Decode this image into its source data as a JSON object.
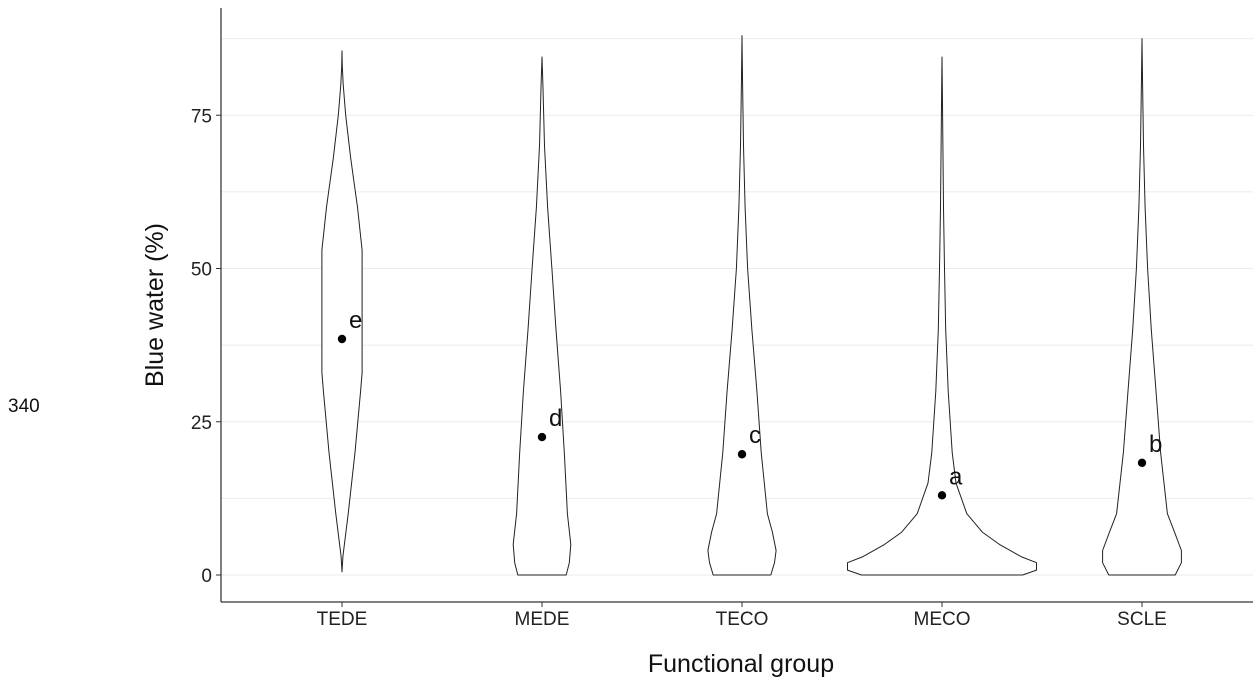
{
  "line_number": "340",
  "chart_data": {
    "type": "violin",
    "xlabel": "Functional group",
    "ylabel": "Blue water (%)",
    "ylim": [
      -4.5,
      91
    ],
    "yticks": [
      0,
      25,
      50,
      75
    ],
    "grid": "horizontal major and minor lines",
    "categories": [
      "TEDE",
      "MEDE",
      "TECO",
      "MECO",
      "SCLE"
    ],
    "means": [
      38.5,
      22.5,
      19.7,
      13.0,
      18.3
    ],
    "significance": [
      "e",
      "d",
      "c",
      "a",
      "b"
    ],
    "series": [
      {
        "group": "TEDE",
        "range": [
          0.5,
          85.5
        ],
        "width_profile": [
          [
            0.5,
            0
          ],
          [
            3,
            0.03
          ],
          [
            10,
            0.2
          ],
          [
            20,
            0.42
          ],
          [
            30,
            0.6
          ],
          [
            33,
            0.65
          ],
          [
            40,
            0.65
          ],
          [
            50,
            0.65
          ],
          [
            53,
            0.65
          ],
          [
            60,
            0.5
          ],
          [
            68,
            0.28
          ],
          [
            75,
            0.12
          ],
          [
            80,
            0.04
          ],
          [
            83,
            0.01
          ],
          [
            85.5,
            0
          ]
        ]
      },
      {
        "group": "MEDE",
        "range": [
          0,
          84.5
        ],
        "width_profile": [
          [
            0,
            0.78
          ],
          [
            2,
            0.88
          ],
          [
            5,
            0.93
          ],
          [
            10,
            0.82
          ],
          [
            20,
            0.72
          ],
          [
            30,
            0.6
          ],
          [
            40,
            0.45
          ],
          [
            50,
            0.32
          ],
          [
            60,
            0.18
          ],
          [
            70,
            0.08
          ],
          [
            80,
            0.03
          ],
          [
            84.5,
            0
          ]
        ]
      },
      {
        "group": "TECO",
        "range": [
          0,
          88
        ],
        "width_profile": [
          [
            0,
            0.93
          ],
          [
            2,
            1.05
          ],
          [
            4,
            1.1
          ],
          [
            7,
            0.98
          ],
          [
            10,
            0.82
          ],
          [
            20,
            0.62
          ],
          [
            30,
            0.48
          ],
          [
            40,
            0.32
          ],
          [
            50,
            0.18
          ],
          [
            60,
            0.1
          ],
          [
            70,
            0.05
          ],
          [
            80,
            0.02
          ],
          [
            88,
            0
          ]
        ]
      },
      {
        "group": "MECO",
        "range": [
          0,
          84.5
        ],
        "width_profile": [
          [
            0,
            2.6
          ],
          [
            0.8,
            3.05
          ],
          [
            2,
            3.05
          ],
          [
            3,
            2.55
          ],
          [
            5,
            1.85
          ],
          [
            7,
            1.3
          ],
          [
            10,
            0.8
          ],
          [
            15,
            0.45
          ],
          [
            20,
            0.33
          ],
          [
            30,
            0.2
          ],
          [
            40,
            0.12
          ],
          [
            50,
            0.08
          ],
          [
            60,
            0.05
          ],
          [
            70,
            0.03
          ],
          [
            80,
            0.01
          ],
          [
            84.5,
            0
          ]
        ]
      },
      {
        "group": "SCLE",
        "range": [
          0,
          87.5
        ],
        "width_profile": [
          [
            0,
            1.07
          ],
          [
            2,
            1.27
          ],
          [
            4,
            1.27
          ],
          [
            7,
            1.05
          ],
          [
            10,
            0.82
          ],
          [
            20,
            0.6
          ],
          [
            30,
            0.45
          ],
          [
            40,
            0.3
          ],
          [
            50,
            0.18
          ],
          [
            60,
            0.1
          ],
          [
            70,
            0.05
          ],
          [
            80,
            0.02
          ],
          [
            87.5,
            0
          ]
        ]
      }
    ]
  }
}
